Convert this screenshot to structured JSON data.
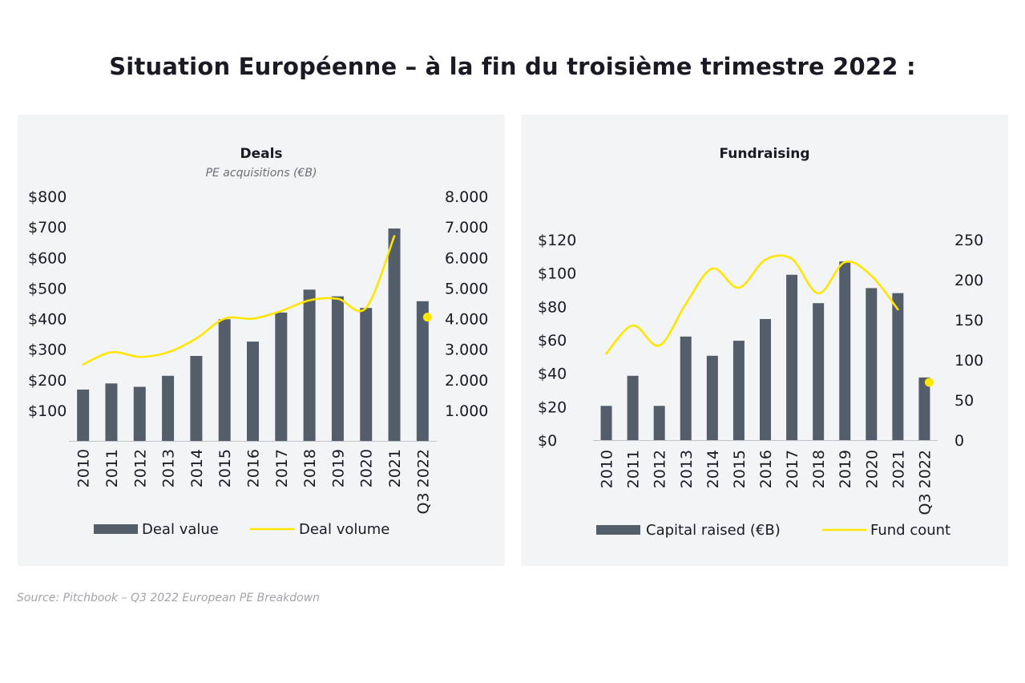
{
  "page": {
    "title": "Situation Européenne – à la fin du troisième trimestre 2022 :",
    "source": "Source: Pitchbook – Q3 2022 European PE Breakdown"
  },
  "colors": {
    "bar": "#545e6a",
    "line": "#ffe600",
    "axis": "#bfc3c9",
    "panel": "#f3f4f6"
  },
  "chart_data": [
    {
      "type": "bar",
      "title": "Deals",
      "subtitle": "PE acquisitions (€B)",
      "categories": [
        "2010",
        "2011",
        "2012",
        "2013",
        "2014",
        "2015",
        "2016",
        "2017",
        "2018",
        "2019",
        "2020",
        "2021",
        "Q3 2022"
      ],
      "series": [
        {
          "name": "Deal value",
          "type": "bar",
          "axis": "left",
          "values": [
            168,
            188,
            177,
            213,
            278,
            398,
            325,
            420,
            495,
            473,
            435,
            695,
            457
          ]
        },
        {
          "name": "Deal volume",
          "type": "line",
          "axis": "right",
          "values": [
            2500,
            2900,
            2750,
            2900,
            3350,
            4000,
            4000,
            4250,
            4600,
            4650,
            4350,
            6700,
            4050
          ]
        }
      ],
      "y_left": {
        "min": 0,
        "max": 800,
        "ticks": [
          "$100",
          "$200",
          "$300",
          "$400",
          "$500",
          "$600",
          "$700",
          "$800"
        ],
        "tick_values": [
          100,
          200,
          300,
          400,
          500,
          600,
          700,
          800
        ]
      },
      "y_right": {
        "min": 0,
        "max": 8000,
        "ticks": [
          "1.000",
          "2.000",
          "3.000",
          "4.000",
          "5.000",
          "6.000",
          "7.000",
          "8.000"
        ],
        "tick_values": [
          1000,
          2000,
          3000,
          4000,
          5000,
          6000,
          7000,
          8000
        ]
      },
      "legend_position": "bottom",
      "grid": false
    },
    {
      "type": "bar",
      "title": "Fundraising",
      "subtitle": "",
      "categories": [
        "2010",
        "2011",
        "2012",
        "2013",
        "2014",
        "2015",
        "2016",
        "2017",
        "2018",
        "2019",
        "2020",
        "2021",
        "Q3 2022"
      ],
      "series": [
        {
          "name": "Capital raised (€B)",
          "type": "bar",
          "axis": "left",
          "values": [
            20.5,
            38.5,
            20.5,
            62,
            50.5,
            59.5,
            72.5,
            99,
            82,
            107,
            91,
            88,
            37.5
          ]
        },
        {
          "name": "Fund count",
          "type": "line",
          "axis": "right",
          "values": [
            108,
            143,
            118,
            170,
            214,
            190,
            225,
            226,
            183,
            222,
            205,
            163,
            72
          ]
        }
      ],
      "y_left": {
        "min": 0,
        "max": 120,
        "ticks": [
          "$0",
          "$20",
          "$40",
          "$60",
          "$80",
          "$100",
          "$120"
        ],
        "tick_values": [
          0,
          20,
          40,
          60,
          80,
          100,
          120
        ]
      },
      "y_right": {
        "min": 0,
        "max": 250,
        "ticks": [
          "0",
          "50",
          "100",
          "150",
          "200",
          "250"
        ],
        "tick_values": [
          0,
          50,
          100,
          150,
          200,
          250
        ]
      },
      "legend_position": "bottom",
      "grid": false
    }
  ]
}
